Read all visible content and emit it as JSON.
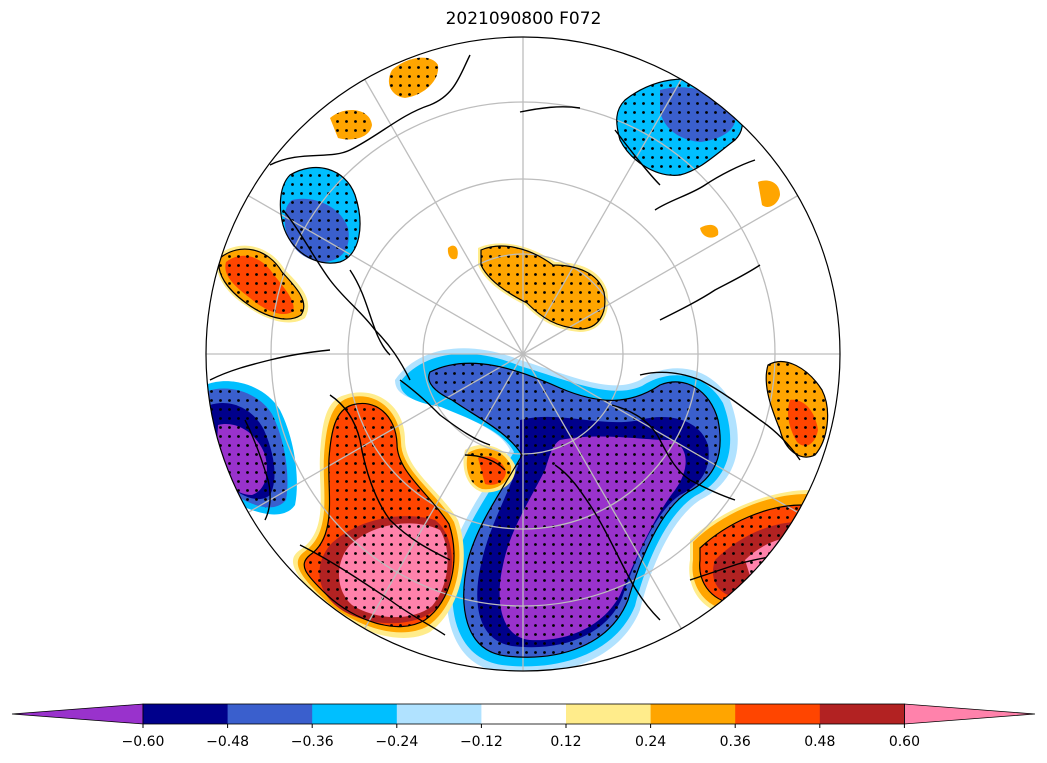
{
  "title": "2021090800 F072",
  "map": {
    "projection": "north-polar-stereographic",
    "graticule": true,
    "coastlines": true,
    "stippling": "significant-values"
  },
  "colorbar": {
    "extend": "both",
    "levels": [
      -0.6,
      -0.48,
      -0.36,
      -0.24,
      -0.12,
      0.12,
      0.24,
      0.36,
      0.48,
      0.6
    ],
    "tick_labels": [
      "−0.60",
      "−0.48",
      "−0.36",
      "−0.24",
      "−0.12",
      "0.12",
      "0.24",
      "0.36",
      "0.48",
      "0.60"
    ],
    "colors": [
      "#9932CC",
      "#00008B",
      "#3A5FCD",
      "#00BFFF",
      "#B0E2FF",
      "#FFFFFF",
      "#FFEC8B",
      "#FFA500",
      "#FF4500",
      "#B22222",
      "#FF82AB"
    ]
  },
  "anomaly_regions": [
    {
      "region": "north-atlantic-eurasia",
      "value_range": [
        -0.6,
        -0.36
      ]
    },
    {
      "region": "north-america-west",
      "value_range": [
        0.48,
        0.6
      ]
    },
    {
      "region": "arctic-ocean-center",
      "value_range": [
        0.24,
        0.36
      ]
    },
    {
      "region": "north-pacific",
      "value_range": [
        -0.6,
        -0.48
      ]
    },
    {
      "region": "east-asia",
      "value_range": [
        0.36,
        0.6
      ]
    }
  ]
}
